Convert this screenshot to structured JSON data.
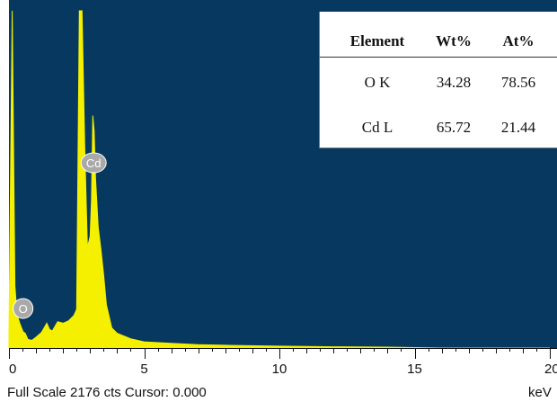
{
  "chart_data": {
    "type": "line",
    "xlabel": "keV",
    "xlim": [
      0,
      20
    ],
    "ylim": [
      0,
      2176
    ],
    "x_ticks": [
      0,
      5,
      10,
      15,
      20
    ],
    "background_color": "#07385f",
    "spectrum_color": "#f4f000",
    "badge_color": "#a9a9a9",
    "x": [
      0.0,
      0.12,
      0.22,
      0.3,
      0.4,
      0.52,
      0.6,
      0.7,
      0.85,
      1.0,
      1.2,
      1.4,
      1.5,
      1.6,
      1.8,
      2.0,
      2.2,
      2.4,
      2.5,
      2.6,
      2.7,
      2.8,
      2.9,
      3.0,
      3.05,
      3.1,
      3.15,
      3.2,
      3.3,
      3.4,
      3.5,
      3.6,
      3.8,
      4.0,
      4.5,
      5.0,
      6.0,
      7.0,
      8.0,
      10.0,
      12.0,
      14.0,
      15.0,
      16.0,
      18.0,
      20.0
    ],
    "y": [
      120,
      2176,
      400,
      215,
      160,
      105,
      95,
      55,
      50,
      70,
      100,
      160,
      120,
      110,
      170,
      160,
      175,
      210,
      250,
      2176,
      2176,
      1300,
      650,
      720,
      950,
      1500,
      1400,
      1100,
      780,
      640,
      470,
      280,
      130,
      95,
      60,
      40,
      30,
      22,
      18,
      12,
      8,
      6,
      3,
      0,
      0,
      0
    ],
    "peak_labels": [
      {
        "label": "O",
        "x": 0.52,
        "y": 255
      },
      {
        "label": "Cd",
        "x": 3.13,
        "y": 1195
      }
    ],
    "full_scale_label": "Full Scale 2176 cts Cursor: 0.000"
  },
  "table": {
    "headers": [
      "Element",
      "Wt%",
      "At%"
    ],
    "rows": [
      [
        "O K",
        "34.28",
        "78.56"
      ],
      [
        "Cd L",
        "65.72",
        "21.44"
      ]
    ]
  }
}
